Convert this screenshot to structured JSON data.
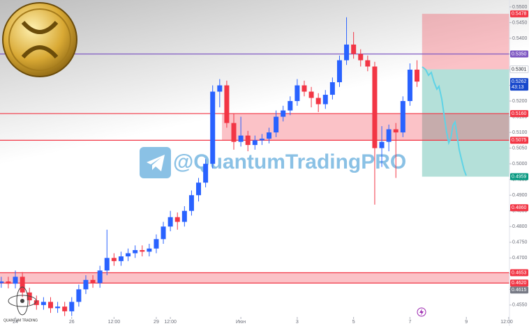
{
  "chart_data": {
    "type": "candlestick",
    "watermark": "@QuantumTradingPRO",
    "brand": "QUANTUM TRADING",
    "up_color": "#2962ff",
    "down_color": "#f23645",
    "xlim": [
      23.455,
      41.53
    ],
    "ylim": [
      0.4512,
      0.5522
    ],
    "xticks": [
      24,
      26,
      {
        "value": 27.5,
        "label": "12:00"
      },
      29,
      {
        "value": 29.5,
        "label": "12:00"
      },
      {
        "value": 32,
        "label": "Июн"
      },
      {
        "value": 34,
        "label": "3"
      },
      {
        "value": 36,
        "label": "5"
      },
      {
        "value": 38,
        "label": "7"
      },
      {
        "value": 40,
        "label": "9"
      },
      {
        "value": 41.5,
        "label": "12:00"
      }
    ],
    "yticks": [
      {
        "value": 0.455,
        "label": "0.4550"
      },
      {
        "value": 0.46,
        "label": "0.4600"
      },
      {
        "value": 0.465,
        "label": "0.4650"
      },
      {
        "value": 0.47,
        "label": "0.4700"
      },
      {
        "value": 0.475,
        "label": "0.4750"
      },
      {
        "value": 0.48,
        "label": "0.4800"
      },
      {
        "value": 0.485,
        "label": "0.4850"
      },
      {
        "value": 0.49,
        "label": "0.4900"
      },
      {
        "value": 0.495,
        "label": "0.4950"
      },
      {
        "value": 0.5,
        "label": "0.5000"
      },
      {
        "value": 0.505,
        "label": "0.5050"
      },
      {
        "value": 0.51,
        "label": "0.5100"
      },
      {
        "value": 0.515,
        "label": "0.5150"
      },
      {
        "value": 0.52,
        "label": "0.5200"
      },
      {
        "value": 0.525,
        "label": "0.5250"
      },
      {
        "value": 0.53,
        "label": "0.5300"
      },
      {
        "value": 0.535,
        "label": "0.5350"
      },
      {
        "value": 0.54,
        "label": "0.5400"
      },
      {
        "value": 0.545,
        "label": "0.5450"
      },
      {
        "value": 0.55,
        "label": "0.5500"
      }
    ],
    "x": [
      23.5,
      23.75,
      24,
      24.25,
      24.5,
      24.75,
      25,
      25.25,
      25.5,
      25.75,
      26,
      26.25,
      26.5,
      26.75,
      27,
      27.25,
      27.5,
      27.75,
      28,
      28.25,
      28.5,
      28.75,
      29,
      29.25,
      29.5,
      29.75,
      30,
      30.25,
      30.5,
      30.75,
      31,
      31.25,
      31.5,
      31.75,
      32,
      32.25,
      32.5,
      32.75,
      33,
      33.25,
      33.5,
      33.75,
      34,
      34.25,
      34.5,
      34.75,
      35,
      35.25,
      35.5,
      35.75,
      36,
      36.25,
      36.5,
      36.75,
      37,
      37.25,
      37.5,
      37.75,
      38,
      38.25
    ],
    "open": [
      0.462,
      0.4625,
      0.4618,
      0.464,
      0.459,
      0.4565,
      0.455,
      0.456,
      0.454,
      0.4545,
      0.453,
      0.456,
      0.46,
      0.463,
      0.462,
      0.466,
      0.47,
      0.469,
      0.4705,
      0.4715,
      0.4725,
      0.472,
      0.473,
      0.476,
      0.48,
      0.483,
      0.4815,
      0.485,
      0.49,
      0.494,
      0.5,
      0.523,
      0.525,
      0.513,
      0.507,
      0.509,
      0.506,
      0.5075,
      0.508,
      0.51,
      0.515,
      0.517,
      0.52,
      0.525,
      0.523,
      0.521,
      0.519,
      0.522,
      0.526,
      0.533,
      0.538,
      0.535,
      0.533,
      0.531,
      0.505,
      0.507,
      0.511,
      0.51,
      0.52,
      0.53
    ],
    "high": [
      0.464,
      0.464,
      0.466,
      0.4655,
      0.4605,
      0.458,
      0.4575,
      0.4575,
      0.456,
      0.456,
      0.4575,
      0.4615,
      0.4645,
      0.4645,
      0.4675,
      0.479,
      0.4715,
      0.472,
      0.473,
      0.474,
      0.474,
      0.4745,
      0.4775,
      0.4815,
      0.485,
      0.4845,
      0.4865,
      0.4915,
      0.4955,
      0.5015,
      0.525,
      0.527,
      0.5265,
      0.516,
      0.515,
      0.5105,
      0.509,
      0.5095,
      0.5115,
      0.517,
      0.5185,
      0.5215,
      0.527,
      0.5265,
      0.5245,
      0.5225,
      0.5235,
      0.5275,
      0.5345,
      0.5467,
      0.542,
      0.5365,
      0.5345,
      0.5325,
      0.512,
      0.5125,
      0.513,
      0.5215,
      0.532,
      0.533
    ],
    "low": [
      0.4605,
      0.4603,
      0.4603,
      0.4575,
      0.455,
      0.4535,
      0.4535,
      0.4525,
      0.4525,
      0.4515,
      0.4515,
      0.4545,
      0.4585,
      0.4605,
      0.4605,
      0.4645,
      0.4675,
      0.4675,
      0.469,
      0.47,
      0.4705,
      0.4705,
      0.4715,
      0.4745,
      0.4785,
      0.479,
      0.48,
      0.4835,
      0.488,
      0.4925,
      0.4985,
      0.518,
      0.5115,
      0.5045,
      0.5055,
      0.504,
      0.5045,
      0.506,
      0.5065,
      0.5085,
      0.5135,
      0.5155,
      0.5185,
      0.5215,
      0.518,
      0.5165,
      0.5175,
      0.5205,
      0.5245,
      0.5315,
      0.5335,
      0.531,
      0.5295,
      0.487,
      0.499,
      0.504,
      0.4955,
      0.5085,
      0.5185,
      0.5245
    ],
    "close": [
      0.4625,
      0.4618,
      0.464,
      0.459,
      0.4565,
      0.455,
      0.456,
      0.454,
      0.4545,
      0.453,
      0.456,
      0.46,
      0.463,
      0.462,
      0.466,
      0.47,
      0.469,
      0.4705,
      0.4715,
      0.4725,
      0.472,
      0.473,
      0.476,
      0.48,
      0.483,
      0.4815,
      0.485,
      0.49,
      0.494,
      0.5,
      0.523,
      0.525,
      0.513,
      0.507,
      0.509,
      0.506,
      0.5075,
      0.508,
      0.51,
      0.515,
      0.517,
      0.52,
      0.525,
      0.523,
      0.521,
      0.519,
      0.522,
      0.526,
      0.533,
      0.538,
      0.535,
      0.533,
      0.531,
      0.505,
      0.507,
      0.511,
      0.51,
      0.52,
      0.53,
      0.5262
    ],
    "zones": [
      {
        "x0": 38.43,
        "top": 0.5478,
        "bottom": 0.5301,
        "color": "#f23645"
      },
      {
        "x0": 38.43,
        "top": 0.5301,
        "bottom": 0.4959,
        "color": "#089981"
      },
      {
        "x0": 31.33,
        "top": 0.516,
        "bottom": 0.5075,
        "color": "#f23645"
      },
      {
        "top": 0.4653,
        "bottom": 0.462,
        "color": "#f23645"
      }
    ],
    "price_labels": [
      {
        "value": 0.5478,
        "label": "0.5478",
        "color": "#f23645",
        "text_color": "#ffffff",
        "line": false
      },
      {
        "value": 0.535,
        "label": "0.5350",
        "color": "#7e57c2",
        "text_color": "#ffffff",
        "line": true
      },
      {
        "value": 0.5301,
        "label": "0.5301",
        "color": "#ffffff",
        "text_color": "#131722",
        "line": false
      },
      {
        "value": 0.5262,
        "label": "0.5262",
        "countdown": "43:13",
        "color": "#1848cc",
        "text_color": "#ffffff",
        "line": false
      },
      {
        "value": 0.516,
        "label": "0.5160",
        "color": "#f23645",
        "text_color": "#ffffff",
        "line": true
      },
      {
        "value": 0.5075,
        "label": "0.5075",
        "color": "#f23645",
        "text_color": "#ffffff",
        "line": true
      },
      {
        "value": 0.4959,
        "label": "0.4959",
        "color": "#089981",
        "text_color": "#ffffff",
        "line": false
      },
      {
        "value": 0.486,
        "label": "0.4860",
        "color": "#f23645",
        "text_color": "#ffffff",
        "line": false
      },
      {
        "value": 0.4653,
        "label": "0.4653",
        "color": "#f23645",
        "text_color": "#ffffff",
        "line": true
      },
      {
        "value": 0.462,
        "label": "0.4620",
        "color": "#f23645",
        "text_color": "#ffffff",
        "line": true
      },
      {
        "value": 0.4615,
        "label": "0.4615",
        "color": "#787b86",
        "text_color": "#ffffff",
        "line": false
      }
    ]
  }
}
